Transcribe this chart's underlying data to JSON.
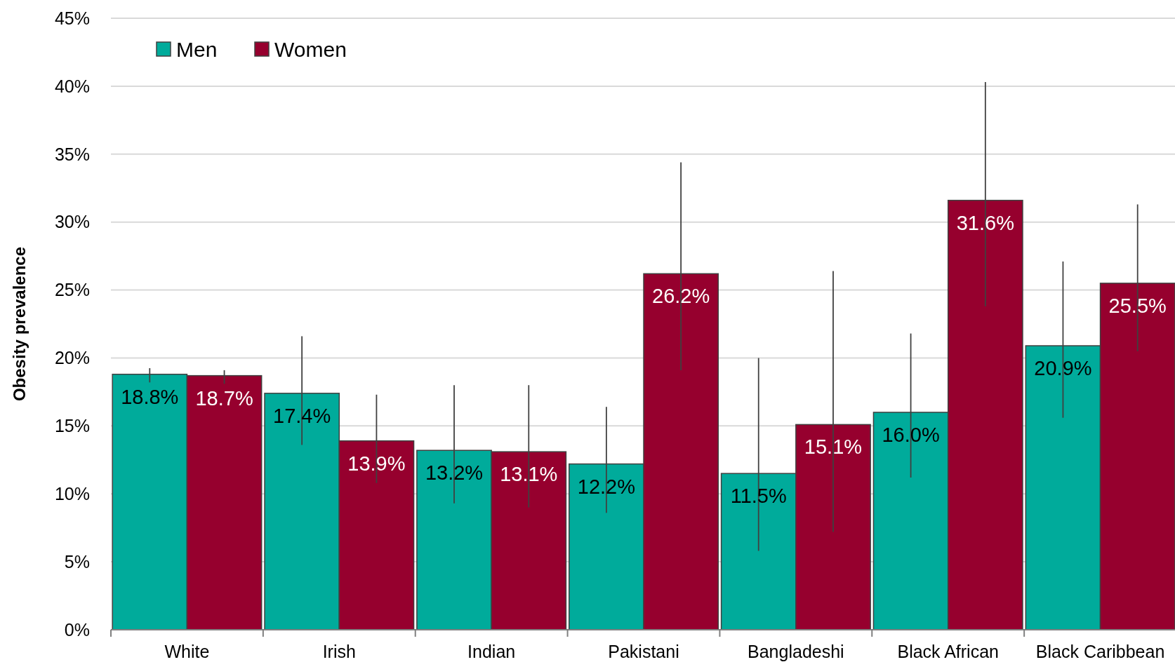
{
  "chart_data": {
    "type": "bar",
    "ylabel": "Obesity prevalence",
    "categories": [
      "White",
      "Irish",
      "Indian",
      "Pakistani",
      "Bangladeshi",
      "Black African",
      "Black Caribbean"
    ],
    "series": [
      {
        "name": "Men",
        "color": "#00ab9b",
        "values": [
          18.8,
          17.4,
          13.2,
          12.2,
          11.5,
          16.0,
          20.9
        ],
        "value_labels": [
          "18.8%",
          "17.4%",
          "13.2%",
          "12.2%",
          "11.5%",
          "16.0%",
          "20.9%"
        ],
        "errors": [
          [
            18.2,
            19.25
          ],
          [
            13.6,
            21.6
          ],
          [
            9.3,
            18.0
          ],
          [
            8.6,
            16.4
          ],
          [
            5.8,
            20.0
          ],
          [
            11.2,
            21.8
          ],
          [
            15.6,
            27.1
          ]
        ]
      },
      {
        "name": "Women",
        "color": "#96002e",
        "values": [
          18.7,
          13.9,
          13.1,
          26.2,
          15.1,
          31.6,
          25.5
        ],
        "value_labels": [
          "18.7%",
          "13.9%",
          "13.1%",
          "26.2%",
          "15.1%",
          "31.6%",
          "25.5%"
        ],
        "errors": [
          [
            18.1,
            19.1
          ],
          [
            10.8,
            17.3
          ],
          [
            9.0,
            18.0
          ],
          [
            19.1,
            34.4
          ],
          [
            7.2,
            26.4
          ],
          [
            23.8,
            40.3
          ],
          [
            20.5,
            31.3
          ]
        ]
      }
    ],
    "ylim": [
      0,
      45
    ],
    "yticks": [
      {
        "value": 0,
        "label": "0%"
      },
      {
        "value": 5,
        "label": "5%"
      },
      {
        "value": 10,
        "label": "10%"
      },
      {
        "value": 15,
        "label": "15%"
      },
      {
        "value": 20,
        "label": "20%"
      },
      {
        "value": 25,
        "label": "25%"
      },
      {
        "value": 30,
        "label": "30%"
      },
      {
        "value": 35,
        "label": "35%"
      },
      {
        "value": 40,
        "label": "40%"
      },
      {
        "value": 45,
        "label": "45%"
      }
    ],
    "grid": "y",
    "legend": "top left"
  }
}
